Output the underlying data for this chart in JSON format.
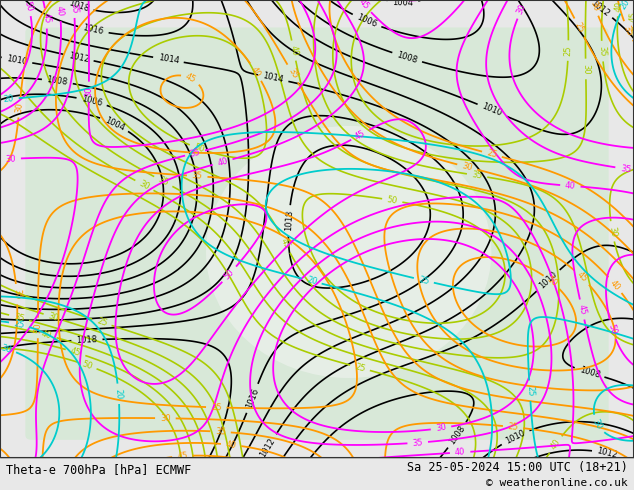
{
  "title_left": "Theta-e 700hPa [hPa] ECMWF",
  "title_right": "Sa 25-05-2024 15:00 UTC (18+21)",
  "copyright": "© weatheronline.co.uk",
  "bg_color": "#e8e8e8",
  "map_bg_light": "#d8e8d8",
  "map_bg_white": "#f0f0f0",
  "text_color": "#000000",
  "footer_bg": "#ffffff",
  "figsize": [
    6.34,
    4.9
  ],
  "dpi": 100,
  "contour_colors_black": "#000000",
  "contour_colors_green_light": "#90c090",
  "contour_colors_cyan": "#00cccc",
  "contour_colors_orange": "#ff9900",
  "contour_colors_red": "#ff0000",
  "contour_colors_magenta": "#ff00ff",
  "contour_colors_yellow_green": "#aacc00",
  "bottom_bar_height": 0.065
}
